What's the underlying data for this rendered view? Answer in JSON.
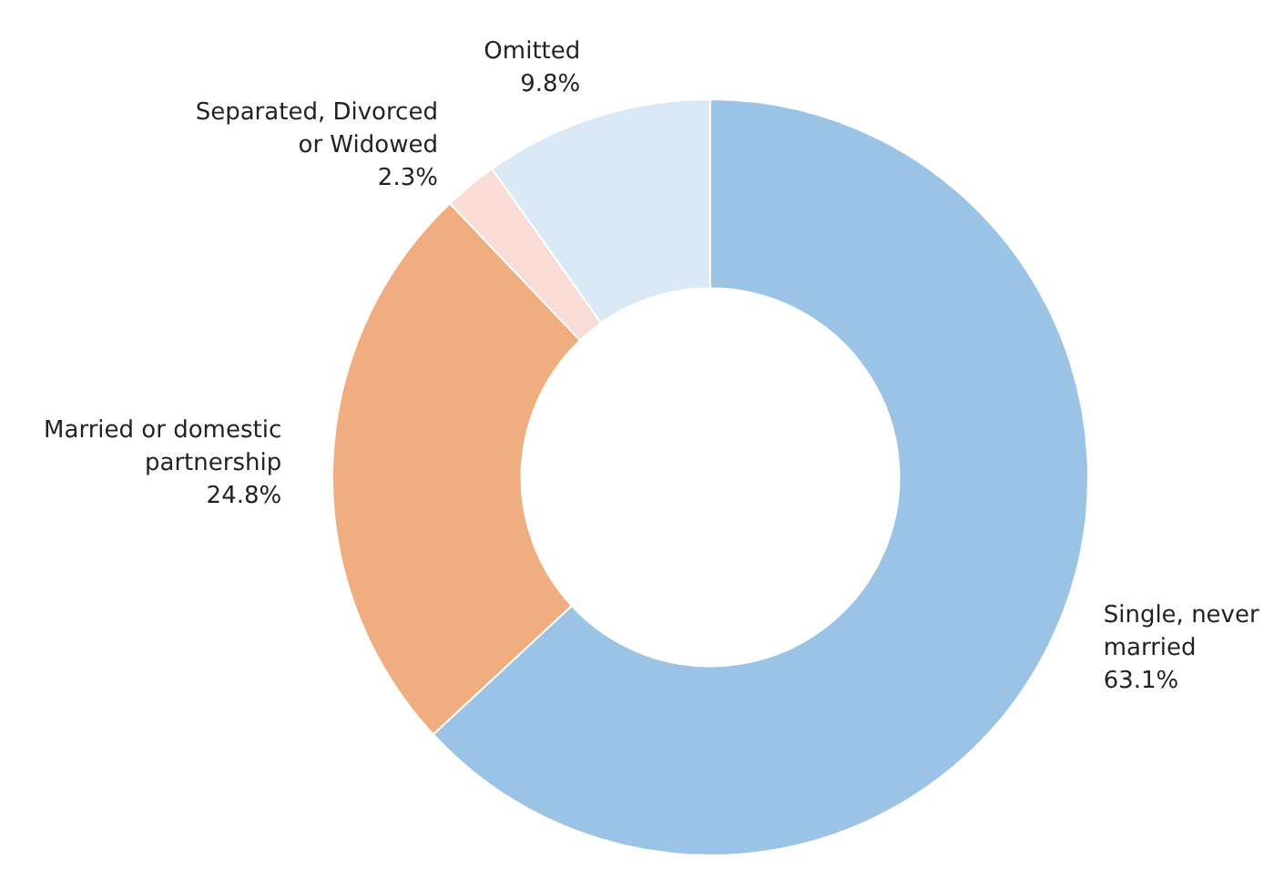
{
  "chart_data": {
    "type": "donut",
    "categories": [
      "Single, never married",
      "Married or domestic partnership",
      "Separated, Divorced or Widowed",
      "Omitted"
    ],
    "values": [
      63.1,
      24.8,
      2.3,
      9.8
    ],
    "colors": [
      "#9bc3e6",
      "#f0ad80",
      "#f8dcd5",
      "#dbe9f6"
    ],
    "value_labels": [
      "63.1%",
      "24.8%",
      "2.3%",
      "9.8%"
    ],
    "legend": false
  }
}
